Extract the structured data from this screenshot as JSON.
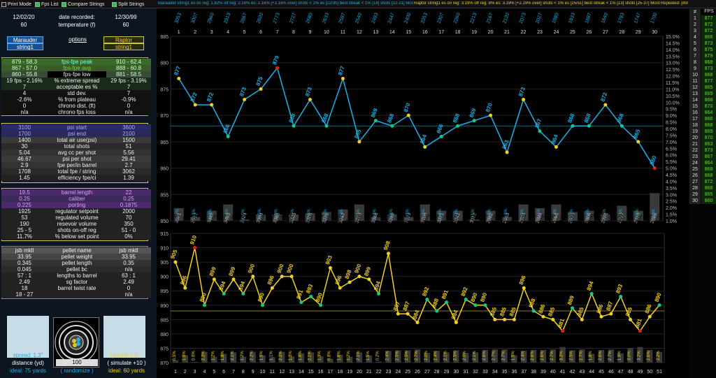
{
  "toolbar": {
    "print_mode": "Print Mode",
    "fps_list": "Fps List",
    "compare_strings": "Compare Strings",
    "split_strings": "Split Strings",
    "summary_left": "Marauder string1 es on reg: 1.82% off reg: 2.16% es: 2.16% [+1.16% over] shots < 1% es [22/30] best streak < 1% [18] shots [12-21] Most Repeated: [868]7x",
    "summary_right": "Raptor string1 es on reg: 3.19% off reg: 8% es: 3.19% [+2.19% over] shots < 1% es [25/51] best streak < 1% [13] shots [25-37] Most Repeated: [890]6x"
  },
  "header": {
    "date1": "12/02/20",
    "date_label": "date recorded:",
    "date2": "12/30/99",
    "temp1": "60",
    "temp_label": "temperature (f)",
    "temp2": "60"
  },
  "options": {
    "gun1": "Marauder",
    "str1": "string1",
    "options_label": "options",
    "gun2": "Raptor",
    "str2": "string1"
  },
  "stats1": [
    {
      "v1": "879 - 58.3",
      "label": "fps-fpe peak",
      "v2": "910 - 62.4",
      "c": "#7fd"
    },
    {
      "v1": "867 - 57.0",
      "label": "fps-fpe avg",
      "v2": "888 - 60.8",
      "c": "#7c4"
    },
    {
      "v1": "860 - 55.8",
      "label": "fps-fpe low",
      "v2": "881 - 58.5",
      "c": "#ddd"
    },
    {
      "v1": "19 fps - 2.16%",
      "label": "% extreme spread",
      "v2": "29 fps - 3.19%",
      "c": "#eee"
    },
    {
      "v1": "7",
      "label": "acceptable es %",
      "v2": "7",
      "c": "#eee"
    },
    {
      "v1": "4",
      "label": "std dev.",
      "v2": "7",
      "c": "#eee"
    },
    {
      "v1": "-2.6%",
      "label": "% from plateau",
      "v2": "-0.9%",
      "c": "#eee"
    },
    {
      "v1": "0",
      "label": "chrono dist. (ft)",
      "v2": "0",
      "c": "#eee"
    },
    {
      "v1": "n/a",
      "label": "chrono fps loss",
      "v2": "n/a",
      "c": "#eee"
    }
  ],
  "stats2": [
    {
      "v1": "3100",
      "label": "psi start",
      "v2": "3600"
    },
    {
      "v1": "1700",
      "label": "psi end",
      "v2": "2100"
    },
    {
      "v1": "1400",
      "label": "total air use(psi)",
      "v2": "1500"
    },
    {
      "v1": "30",
      "label": "total shots",
      "v2": "51"
    },
    {
      "v1": "5.04",
      "label": "avg cc per shot",
      "v2": "5.56"
    },
    {
      "v1": "46.67",
      "label": "psi per shot",
      "v2": "29.41"
    },
    {
      "v1": "2.9",
      "label": "fpe per/in barrel",
      "v2": "2.7"
    },
    {
      "v1": "1708",
      "label": "total fpe / string",
      "v2": "3062"
    },
    {
      "v1": "1.45",
      "label": "efficiency fpe/ci",
      "v2": "1.39"
    }
  ],
  "stats3": [
    {
      "v1": "19.5",
      "label": "barrel length",
      "v2": "22"
    },
    {
      "v1": "0.25",
      "label": "caliber",
      "v2": "0.25"
    },
    {
      "v1": "0.225",
      "label": "porting",
      "v2": "0.1875"
    },
    {
      "v1": "1925",
      "label": "regulator setpoint",
      "v2": "2000"
    },
    {
      "v1": "53",
      "label": "regulated volume",
      "v2": "70"
    },
    {
      "v1": "190",
      "label": "resevoir volume",
      "v2": "350"
    },
    {
      "v1": "25 - 5",
      "label": "shots on-off reg",
      "v2": "51 - 0"
    },
    {
      "v1": "11.7%",
      "label": "% below set point",
      "v2": "0%"
    }
  ],
  "stats4": [
    {
      "v1": "jsb mkll",
      "label": "pellet name",
      "v2": "jsb mkll"
    },
    {
      "v1": "33.95",
      "label": "pellet weight",
      "v2": "33.95"
    },
    {
      "v1": "0.345",
      "label": "pellet length",
      "v2": "0.35"
    },
    {
      "v1": "0.045",
      "label": "pellet bc",
      "v2": "n/a"
    },
    {
      "v1": "57 : 1",
      "label": "lengths to barrel",
      "v2": "63 : 1"
    },
    {
      "v1": "2.49",
      "label": "sg factor",
      "v2": "2.49"
    },
    {
      "v1": "18",
      "label": "barrel twist rate",
      "v2": "0"
    },
    {
      "v1": "18 - 27",
      "label": "",
      "v2": "n/a"
    }
  ],
  "bottom": {
    "spread1": "spread: 1.3\"",
    "distance_label": "distance (yd)",
    "ideal1": "ideal: 75 yards",
    "spread2": "spread: 1.9\"",
    "distance": "100",
    "randomize": "( randomize )",
    "simulate": "( simulate +10 )",
    "ideal2": "ideal: 60 yards"
  },
  "colors": {
    "m": "#1ab0e8",
    "r": "#f0d020",
    "mLine": "#1ab0e8",
    "rLine": "#e8e020"
  },
  "fps_column": {
    "header": "FPS",
    "rows": [
      {
        "n": "#",
        "v": ""
      },
      {
        "n": "1",
        "v": "877"
      },
      {
        "n": "2",
        "v": "872"
      },
      {
        "n": "3",
        "v": "872"
      },
      {
        "n": "4",
        "v": "866"
      },
      {
        "n": "5",
        "v": "873"
      },
      {
        "n": "6",
        "v": "875"
      },
      {
        "n": "7",
        "v": "879"
      },
      {
        "n": "8",
        "v": "868"
      },
      {
        "n": "9",
        "v": "873"
      },
      {
        "n": "10",
        "v": "868"
      },
      {
        "n": "11",
        "v": "877"
      },
      {
        "n": "12",
        "v": "865"
      },
      {
        "n": "13",
        "v": "869"
      },
      {
        "n": "14",
        "v": "868"
      },
      {
        "n": "15",
        "v": "870"
      },
      {
        "n": "16",
        "v": "864"
      },
      {
        "n": "17",
        "v": "866"
      },
      {
        "n": "18",
        "v": "868"
      },
      {
        "n": "19",
        "v": "869"
      },
      {
        "n": "20",
        "v": "870"
      },
      {
        "n": "21",
        "v": "863"
      },
      {
        "n": "22",
        "v": "873"
      },
      {
        "n": "23",
        "v": "867"
      },
      {
        "n": "24",
        "v": "864"
      },
      {
        "n": "25",
        "v": "868"
      },
      {
        "n": "26",
        "v": "868"
      },
      {
        "n": "27",
        "v": "872"
      },
      {
        "n": "28",
        "v": "868"
      },
      {
        "n": "29",
        "v": "865"
      },
      {
        "n": "30",
        "v": "860"
      }
    ]
  },
  "chart_data": [
    {
      "type": "line",
      "title": "",
      "x": [
        1,
        2,
        3,
        4,
        5,
        6,
        7,
        8,
        9,
        10,
        11,
        12,
        13,
        14,
        15,
        16,
        17,
        18,
        19,
        20,
        21,
        22,
        23,
        24,
        25,
        26,
        27,
        28,
        29,
        30
      ],
      "series": [
        {
          "name": "Marauder string1",
          "values": [
            877,
            872,
            872,
            866,
            873,
            875,
            879,
            868,
            873,
            868,
            877,
            865,
            869,
            868,
            870,
            864,
            866,
            868,
            869,
            870,
            863,
            873,
            867,
            864,
            868,
            868,
            872,
            868,
            865,
            860
          ]
        }
      ],
      "top_labels": [
        "3053",
        "3007",
        "2960",
        "2913",
        "2867",
        "2820",
        "2773",
        "2727",
        "2680",
        "2633",
        "2587",
        "2540",
        "2493",
        "2447",
        "2400",
        "2353",
        "2307",
        "2260",
        "2213",
        "2167",
        "2120",
        "2073",
        "2027",
        "1980",
        "1933",
        "1887",
        "1840",
        "1793",
        "1747",
        "1700"
      ],
      "bottom_labels": [
        "3571",
        "3512",
        "3482",
        "3453",
        "3424",
        "3394",
        "3365",
        "3335",
        "3306",
        "3276",
        "3247",
        "3218",
        "3188",
        "3159",
        "3129",
        "3100",
        "3071",
        "3041",
        "3012",
        "2982",
        "2953",
        "2924",
        "2894",
        "2865",
        "2835",
        "2806",
        "2776",
        "2747",
        "2718",
        "2688"
      ],
      "es_pct": [
        "1.0%",
        "0.3%",
        "0.8%",
        "1.3%",
        "0.1%",
        "0.5%",
        "0.5%",
        "0.5%",
        "0.6%",
        "0.7%",
        "0.9%",
        "1.3%",
        "0.3%",
        "0.5%",
        "0.3%",
        "1.3%",
        "0.8%",
        "0.8%",
        "0.1%",
        "0.8%",
        "0.3%",
        "1.3%",
        "1.0%",
        "1.3%",
        "0.7%",
        "0.8%",
        "0.5%",
        "1.2%",
        "0.8%",
        "2.2%"
      ],
      "ylim": [
        850,
        885
      ],
      "y_ticks": [
        850,
        855,
        860,
        865,
        870,
        875,
        880,
        885
      ],
      "right_ticks": [
        "1.0%",
        "1.5%",
        "2.0%",
        "2.5%",
        "3.0%",
        "3.5%",
        "4.0%",
        "4.5%",
        "5.0%",
        "5.5%",
        "6.0%",
        "6.5%",
        "7.0%",
        "7.5%",
        "8.0%",
        "8.5%",
        "9.0%",
        "9.5%",
        "10.0%",
        "10.5%",
        "11.0%",
        "11.5%",
        "12.0%",
        "12.5%",
        "13.0%",
        "13.5%",
        "14.0%",
        "14.5%",
        "15.0%"
      ],
      "avg_line": 868
    },
    {
      "type": "line",
      "title": "",
      "x": [
        1,
        2,
        3,
        4,
        5,
        6,
        7,
        8,
        9,
        10,
        11,
        12,
        13,
        14,
        15,
        16,
        17,
        18,
        19,
        20,
        21,
        22,
        23,
        24,
        25,
        26,
        27,
        28,
        29,
        30,
        31,
        32,
        33,
        34,
        35,
        36,
        37,
        38,
        39,
        40,
        41,
        42,
        43,
        44,
        45,
        46,
        47,
        48,
        49,
        50,
        51
      ],
      "series": [
        {
          "name": "Raptor string1",
          "values": [
            905,
            896,
            910,
            890,
            899,
            894,
            899,
            894,
            900,
            890,
            896,
            900,
            900,
            891,
            893,
            890,
            903,
            896,
            898,
            900,
            899,
            894,
            908,
            887,
            887,
            884,
            892,
            888,
            891,
            884,
            892,
            890,
            890,
            885,
            885,
            885,
            896,
            888,
            886,
            885,
            881,
            889,
            885,
            894,
            886,
            887,
            893,
            885,
            881,
            886,
            890
          ]
        }
      ],
      "top_labels": [
        "2100",
        "2100",
        "2100",
        "2100",
        "2100",
        "2100",
        "2100",
        "2100",
        "2100",
        "2100",
        "2100",
        "2100",
        "2100",
        "2100",
        "2100",
        "2100",
        "2100",
        "2100",
        "2100",
        "2100",
        "2100",
        "2100",
        "2100",
        "2100",
        "2100",
        "2100",
        "2100",
        "2100",
        "2100",
        "2100",
        "2100",
        "2100",
        "2100",
        "2100",
        "2100",
        "2100",
        "2100",
        "2100",
        "2100",
        "2100",
        "2100",
        "2100",
        "2100",
        "2100",
        "2100",
        "2100",
        "2100",
        "2100",
        "2100",
        "2100",
        "2100"
      ],
      "es_pct": [
        "0.5%",
        "1.5%",
        "0.0%",
        "2.2%",
        "1.2%",
        "1.8%",
        "2.1%",
        "1.2%",
        "2.2%",
        "1.5%",
        "1.1%",
        "2.2%",
        "1.3%",
        "1.9%",
        "2.1%",
        "1.3%",
        "0.8%",
        "1.6%",
        "1.2%",
        "2.1%",
        "1.5%",
        "0.2%",
        "2.4%",
        "2.5%",
        "2.5%",
        "2.7%",
        "2.0%",
        "2.4%",
        "2.1%",
        "2.5%",
        "2.0%",
        "2.1%",
        "2.6%",
        "2.7%",
        "2.7%",
        "1.5%",
        "2.4%",
        "2.6%",
        "2.6%",
        "2.7%",
        "3.2%",
        "2.5%",
        "2.7%",
        "1.8%",
        "2.6%",
        "2.7%",
        "1.9%",
        "3.0%",
        "3.2%",
        "2.6%",
        "2.2%"
      ],
      "ylim": [
        870,
        915
      ],
      "y_ticks": [
        870,
        875,
        880,
        885,
        890,
        895,
        900,
        905,
        910,
        915
      ],
      "avg_line": 888
    }
  ]
}
